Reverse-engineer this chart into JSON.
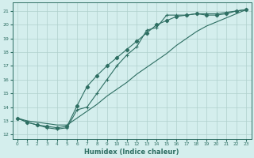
{
  "xlabel": "Humidex (Indice chaleur)",
  "bg_color": "#d4eeed",
  "line_color": "#2d6e62",
  "grid_color": "#b0d0cc",
  "xlim": [
    -0.5,
    23.5
  ],
  "ylim": [
    11.7,
    21.6
  ],
  "yticks": [
    12,
    13,
    14,
    15,
    16,
    17,
    18,
    19,
    20,
    21
  ],
  "xticks": [
    0,
    1,
    2,
    3,
    4,
    5,
    6,
    7,
    8,
    9,
    10,
    11,
    12,
    13,
    14,
    15,
    16,
    17,
    18,
    19,
    20,
    21,
    22,
    23
  ],
  "line1_x": [
    0,
    1,
    2,
    3,
    4,
    5,
    6,
    7,
    8,
    9,
    10,
    11,
    12,
    13,
    14,
    15,
    16,
    17,
    18,
    19,
    20,
    21,
    22,
    23
  ],
  "line1_y": [
    13.2,
    12.9,
    12.7,
    12.6,
    12.5,
    12.6,
    14.1,
    15.5,
    16.3,
    17.0,
    17.6,
    18.2,
    18.8,
    19.4,
    20.0,
    20.3,
    20.6,
    20.7,
    20.8,
    20.7,
    20.7,
    20.8,
    21.0,
    21.1
  ],
  "line2_x": [
    0,
    1,
    2,
    3,
    4,
    5,
    6,
    7,
    8,
    9,
    10,
    11,
    12,
    13,
    14,
    15,
    16,
    17,
    18,
    19,
    20,
    21,
    22,
    23
  ],
  "line2_y": [
    13.2,
    12.9,
    12.7,
    12.5,
    12.4,
    12.5,
    13.8,
    14.0,
    15.0,
    16.0,
    17.0,
    17.8,
    18.4,
    19.6,
    19.8,
    20.7,
    20.7,
    20.7,
    20.8,
    20.8,
    20.8,
    20.9,
    21.0,
    21.1
  ],
  "line3_x": [
    0,
    1,
    2,
    3,
    4,
    5,
    6,
    7,
    8,
    9,
    10,
    11,
    12,
    13,
    14,
    15,
    16,
    17,
    18,
    19,
    20,
    21,
    22,
    23
  ],
  "line3_y": [
    13.2,
    13.0,
    12.9,
    12.8,
    12.7,
    12.7,
    13.2,
    13.7,
    14.2,
    14.8,
    15.3,
    15.8,
    16.4,
    16.9,
    17.4,
    17.9,
    18.5,
    19.0,
    19.5,
    19.9,
    20.2,
    20.5,
    20.8,
    21.1
  ],
  "line1_markers_x": [
    0,
    1,
    2,
    3,
    4,
    5,
    6,
    7,
    8,
    9,
    10,
    11,
    12,
    13,
    14,
    15,
    16,
    17,
    18,
    19,
    20,
    21,
    22,
    23
  ],
  "line1_markers_y": [
    13.2,
    12.9,
    12.7,
    12.6,
    12.5,
    12.6,
    14.1,
    15.5,
    16.3,
    17.0,
    17.6,
    18.2,
    18.8,
    19.4,
    20.0,
    20.3,
    20.6,
    20.7,
    20.8,
    20.7,
    20.7,
    20.8,
    21.0,
    21.1
  ]
}
